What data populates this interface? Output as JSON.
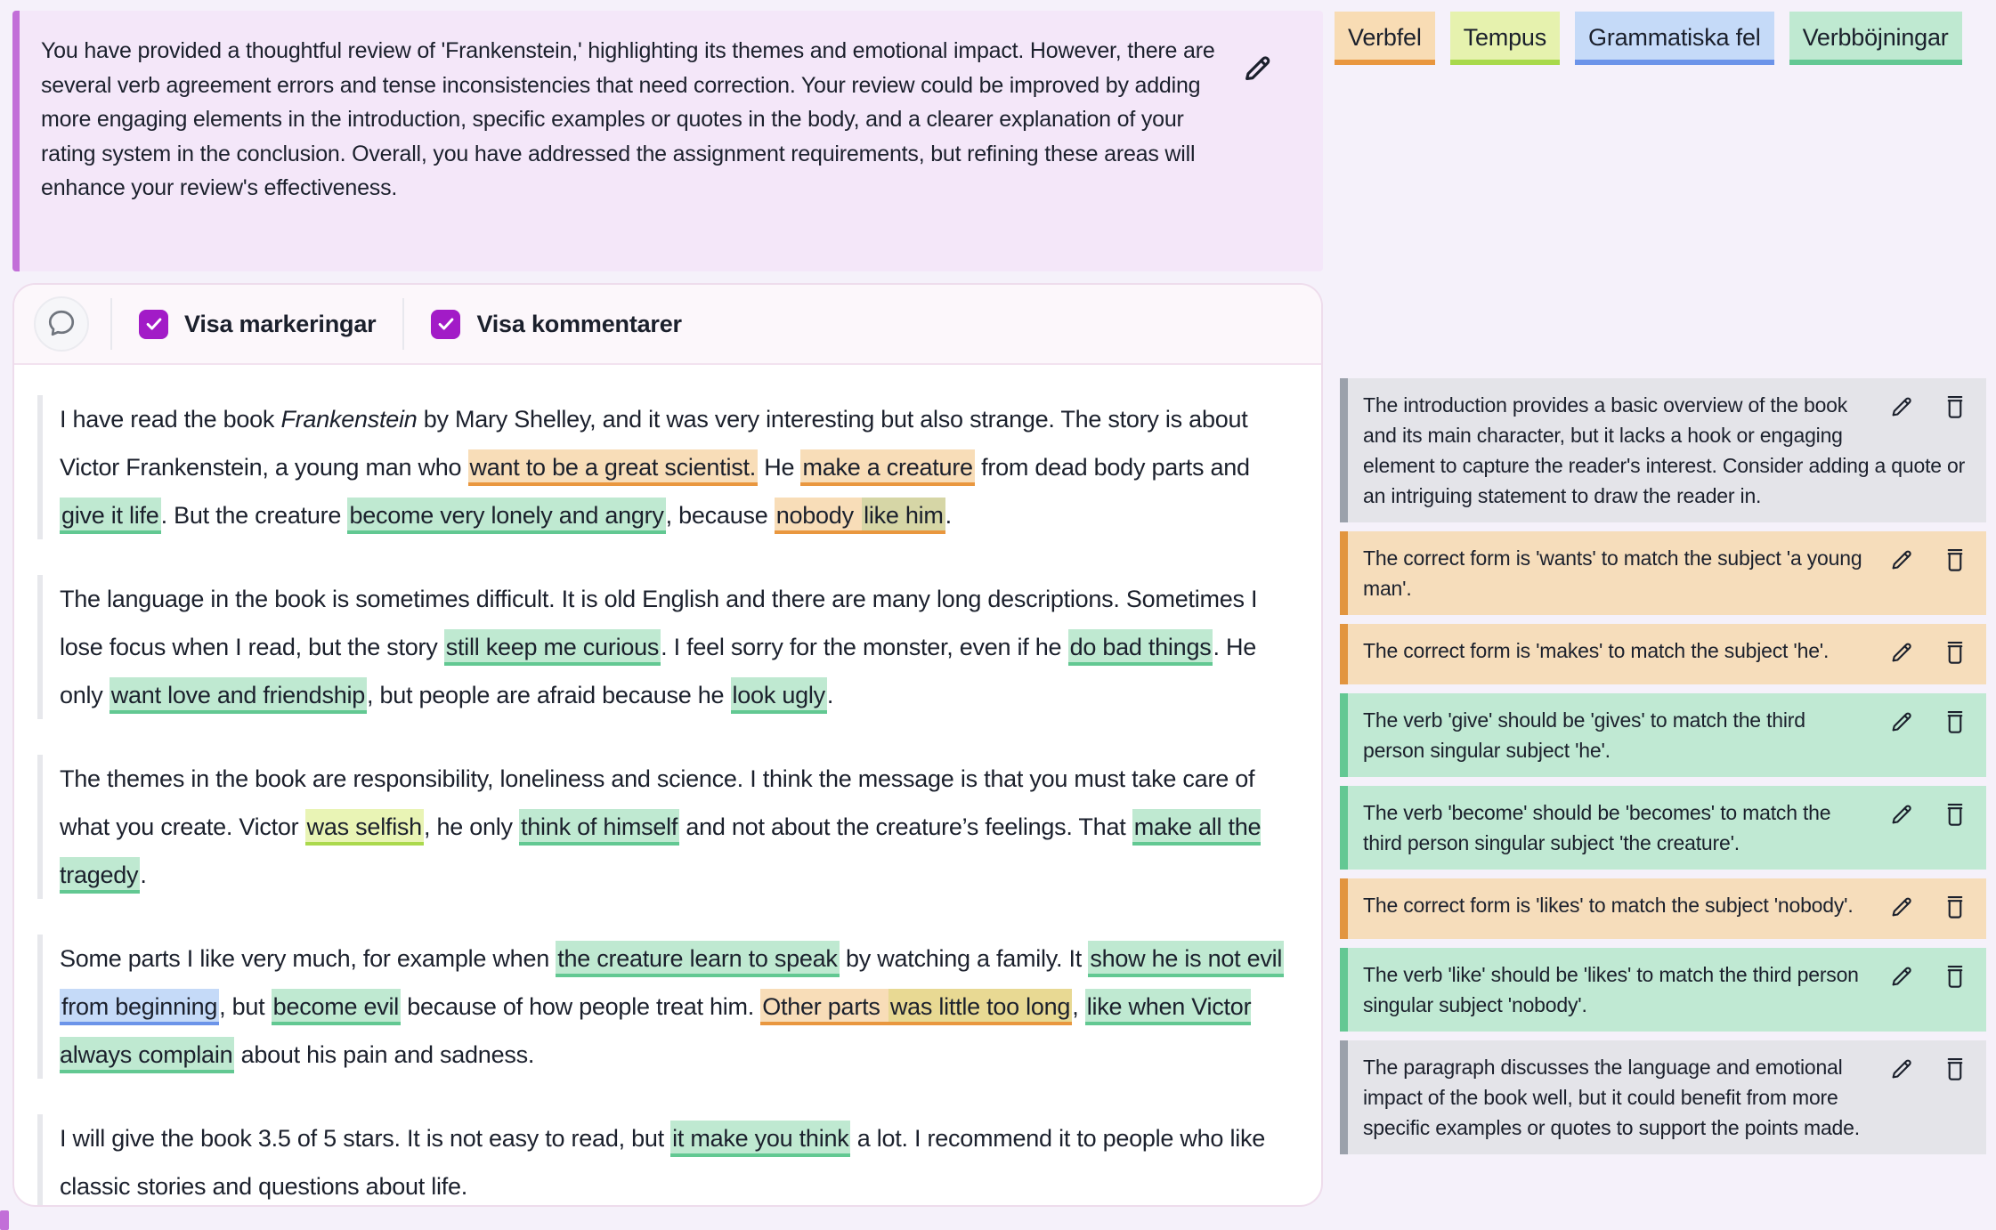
{
  "feedback_box": {
    "text": "You have provided a thoughtful review of 'Frankenstein,' highlighting its themes and emotional impact. However, there are several verb agreement errors and tense inconsistencies that need correction. Your review could be improved by adding more engaging elements in the introduction, specific examples or quotes in the body, and a clearer explanation of your rating system in the conclusion. Overall, you have addressed the assignment requirements, but refining these areas will enhance your review's effectiveness."
  },
  "legend": [
    {
      "kind": "verbfel",
      "label": "Verbfel"
    },
    {
      "kind": "tempus",
      "label": "Tempus"
    },
    {
      "kind": "gram",
      "label": "Grammatiska fel"
    },
    {
      "kind": "verb",
      "label": "Verbböjningar"
    }
  ],
  "toolbar": {
    "toggles": [
      {
        "label": "Visa markeringar",
        "checked": true
      },
      {
        "label": "Visa kommentarer",
        "checked": true
      }
    ]
  },
  "essay": {
    "paragraphs": [
      [
        {
          "t": "plain",
          "text": "I have read the book "
        },
        {
          "t": "italic",
          "text": "Frankenstein"
        },
        {
          "t": "plain",
          "text": " by Mary Shelley, and it was very interesting but also strange. The story is about Victor Frankenstein, a young man who "
        },
        {
          "t": "verbfel",
          "text": "want to be a great scientist."
        },
        {
          "t": "plain",
          "text": " He "
        },
        {
          "t": "verbfel",
          "text": "make a creature"
        },
        {
          "t": "plain",
          "text": " from dead body parts and "
        },
        {
          "t": "verb",
          "text": "give it life"
        },
        {
          "t": "plain",
          "text": ". But the creature "
        },
        {
          "t": "verb",
          "text": "become very lonely and angry"
        },
        {
          "t": "plain",
          "text": ", because "
        },
        {
          "t": "verbfel",
          "text": "nobody "
        },
        {
          "t": "verbfel_verb",
          "text": "like him"
        },
        {
          "t": "plain",
          "text": "."
        }
      ],
      [
        {
          "t": "plain",
          "text": "The language in the book is sometimes difficult. It is old English and there are many long descriptions. Sometimes I lose focus when I read, but the story "
        },
        {
          "t": "verb",
          "text": "still keep me curious"
        },
        {
          "t": "plain",
          "text": ". I feel sorry for the monster, even if he "
        },
        {
          "t": "verb",
          "text": "do bad things"
        },
        {
          "t": "plain",
          "text": ". He only "
        },
        {
          "t": "verb",
          "text": "want love and friendship"
        },
        {
          "t": "plain",
          "text": ", but people are afraid because he "
        },
        {
          "t": "verb",
          "text": "look ugly"
        },
        {
          "t": "plain",
          "text": "."
        }
      ],
      [
        {
          "t": "plain",
          "text": "The themes in the book are responsibility, loneliness and science. I think the message is that you must take care of what you create. Victor "
        },
        {
          "t": "tempus",
          "text": "was selfish"
        },
        {
          "t": "plain",
          "text": ", he only "
        },
        {
          "t": "verb",
          "text": "think of himself"
        },
        {
          "t": "plain",
          "text": " and not about the creature’s feelings. That "
        },
        {
          "t": "verb",
          "text": "make all the tragedy"
        },
        {
          "t": "plain",
          "text": "."
        }
      ],
      [
        {
          "t": "plain",
          "text": "Some parts I like very much, for example when "
        },
        {
          "t": "verb",
          "text": "the creature learn to speak"
        },
        {
          "t": "plain",
          "text": " by watching a family. It "
        },
        {
          "t": "verb",
          "text": "show he is not evil"
        },
        {
          "t": "plain",
          "text": " "
        },
        {
          "t": "gram",
          "text": "from beginning"
        },
        {
          "t": "plain",
          "text": ", but "
        },
        {
          "t": "verb",
          "text": "become evil"
        },
        {
          "t": "plain",
          "text": " because of how people treat him. "
        },
        {
          "t": "verbfel",
          "text": "Other parts "
        },
        {
          "t": "verbfel_tempus",
          "text": "was little too long"
        },
        {
          "t": "plain",
          "text": ", "
        },
        {
          "t": "verb",
          "text": "like when Victor always complain"
        },
        {
          "t": "plain",
          "text": " about his pain and sadness."
        }
      ],
      [
        {
          "t": "plain",
          "text": "I will give the book 3.5 of 5 stars. It is not easy to read, but "
        },
        {
          "t": "verb",
          "text": "it make you think"
        },
        {
          "t": "plain",
          "text": " a lot. I recommend it to people who like classic stories and questions about life."
        }
      ]
    ]
  },
  "comments": [
    {
      "kind": "note",
      "text": "The introduction provides a basic overview of the book and its main character, but it lacks a hook or engaging element to capture the reader's interest. Consider adding a quote or an intriguing statement to draw the reader in."
    },
    {
      "kind": "verbfel",
      "text": "The correct form is 'wants' to match the subject 'a young man'."
    },
    {
      "kind": "verbfel",
      "text": "The correct form is 'makes' to match the subject 'he'."
    },
    {
      "kind": "verb",
      "text": "The verb 'give' should be 'gives' to match the third person singular subject 'he'."
    },
    {
      "kind": "verb",
      "text": "The verb 'become' should be 'becomes' to match the third person singular subject 'the creature'."
    },
    {
      "kind": "verbfel",
      "text": "The correct form is 'likes' to match the subject 'nobody'."
    },
    {
      "kind": "verb",
      "text": "The verb 'like' should be 'likes' to match the third person singular subject 'nobody'."
    },
    {
      "kind": "note",
      "text": "The paragraph discusses the language and emotional impact of the book well, but it could benefit from more specific examples or quotes to support the points made."
    }
  ],
  "colors": {
    "page_bg": "#f5f1fa",
    "feedback_bg": "#f4e7f9",
    "feedback_accent": "#c26fd8",
    "checkbox_purple": "#a21bc7",
    "verbfel_bg": "#f8ddb8",
    "verbfel_accent": "#e9973f",
    "tempus_bg": "#e9f4b5",
    "tempus_accent": "#abd94d",
    "gram_bg": "#c5daf8",
    "gram_accent": "#6c94e9",
    "verb_bg": "#bfe9d1",
    "verb_accent": "#62c892",
    "note_bg": "#e4e4e9",
    "note_accent": "#9ba1ab"
  }
}
